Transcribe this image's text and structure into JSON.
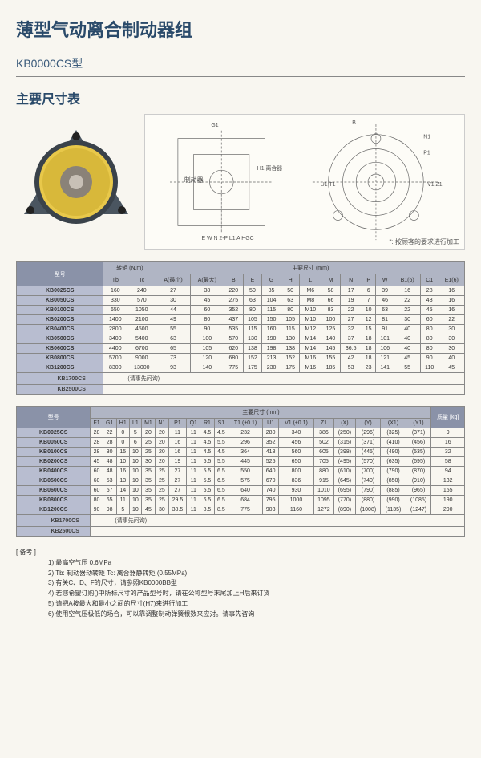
{
  "title_main": "薄型气动离合制动器组",
  "subtitle": "KB0000CS型",
  "section_title": "主要尺寸表",
  "diagram_label_brake": "制动器",
  "diagram_label_clutch": "H1 离合器",
  "diagram_note": "*: 按顾客的要求进行加工",
  "table1": {
    "hdr_model": "型号",
    "hdr_torque": "转矩 (N.m)",
    "hdr_dims": "主要尺寸 (mm)",
    "cols": [
      "Tb",
      "Tc",
      "A(最小)",
      "A(最大)",
      "B",
      "E",
      "G",
      "H",
      "L",
      "M",
      "N",
      "P",
      "W",
      "B1(6)",
      "C1",
      "E1(6)"
    ],
    "rows": [
      {
        "m": "KB0025CS",
        "v": [
          "160",
          "240",
          "27",
          "38",
          "220",
          "50",
          "85",
          "50",
          "M6",
          "58",
          "17",
          "6",
          "39",
          "16",
          "28",
          "16"
        ]
      },
      {
        "m": "KB0050CS",
        "v": [
          "330",
          "570",
          "30",
          "45",
          "275",
          "63",
          "104",
          "63",
          "M8",
          "66",
          "19",
          "7",
          "46",
          "22",
          "43",
          "16"
        ]
      },
      {
        "m": "KB0100CS",
        "v": [
          "650",
          "1050",
          "44",
          "60",
          "352",
          "80",
          "115",
          "80",
          "M10",
          "83",
          "22",
          "10",
          "63",
          "22",
          "45",
          "16"
        ]
      },
      {
        "m": "KB0200CS",
        "v": [
          "1400",
          "2100",
          "49",
          "80",
          "437",
          "105",
          "150",
          "105",
          "M10",
          "100",
          "27",
          "12",
          "81",
          "30",
          "60",
          "22"
        ]
      },
      {
        "m": "KB0400CS",
        "v": [
          "2800",
          "4500",
          "55",
          "90",
          "535",
          "115",
          "160",
          "115",
          "M12",
          "125",
          "32",
          "15",
          "91",
          "40",
          "80",
          "30"
        ]
      },
      {
        "m": "KB0500CS",
        "v": [
          "3400",
          "5400",
          "63",
          "100",
          "570",
          "130",
          "190",
          "130",
          "M14",
          "140",
          "37",
          "18",
          "101",
          "40",
          "80",
          "30"
        ]
      },
      {
        "m": "KB0600CS",
        "v": [
          "4400",
          "6700",
          "65",
          "105",
          "620",
          "138",
          "198",
          "138",
          "M14",
          "145",
          "36.5",
          "18",
          "106",
          "40",
          "80",
          "30"
        ]
      },
      {
        "m": "KB0800CS",
        "v": [
          "5700",
          "9000",
          "73",
          "120",
          "680",
          "152",
          "213",
          "152",
          "M16",
          "155",
          "42",
          "18",
          "121",
          "45",
          "90",
          "40"
        ]
      },
      {
        "m": "KB1200CS",
        "v": [
          "8300",
          "13000",
          "93",
          "140",
          "775",
          "175",
          "230",
          "175",
          "M16",
          "185",
          "53",
          "23",
          "141",
          "55",
          "110",
          "45"
        ]
      }
    ],
    "inquiry_models": [
      "KB1700CS",
      "KB2500CS"
    ],
    "inquiry_text": "(请事先问询)"
  },
  "table2": {
    "hdr_model": "型号",
    "hdr_dims": "主要尺寸 (mm)",
    "hdr_weight": "质量 [kg]",
    "cols": [
      "F1",
      "G1",
      "H1",
      "L1",
      "M1",
      "N1",
      "P1",
      "Q1",
      "R1",
      "S1",
      "T1 (±0.1)",
      "U1",
      "V1 (±0.1)",
      "Z1",
      "(X)",
      "(Y)",
      "(X1)",
      "(Y1)"
    ],
    "rows": [
      {
        "m": "KB0025CS",
        "v": [
          "28",
          "22",
          "0",
          "5",
          "20",
          "20",
          "11",
          "11",
          "4.5",
          "4.5",
          "232",
          "280",
          "340",
          "386",
          "(250)",
          "(296)",
          "(325)",
          "(371)",
          "9"
        ]
      },
      {
        "m": "KB0050CS",
        "v": [
          "28",
          "28",
          "0",
          "6",
          "25",
          "20",
          "16",
          "11",
          "4.5",
          "5.5",
          "296",
          "352",
          "456",
          "502",
          "(315)",
          "(371)",
          "(410)",
          "(456)",
          "16"
        ]
      },
      {
        "m": "KB0100CS",
        "v": [
          "28",
          "30",
          "15",
          "10",
          "25",
          "20",
          "16",
          "11",
          "4.5",
          "4.5",
          "364",
          "418",
          "560",
          "605",
          "(398)",
          "(445)",
          "(490)",
          "(535)",
          "32"
        ]
      },
      {
        "m": "KB0200CS",
        "v": [
          "45",
          "48",
          "10",
          "10",
          "30",
          "20",
          "19",
          "11",
          "5.5",
          "5.5",
          "445",
          "525",
          "650",
          "705",
          "(495)",
          "(570)",
          "(635)",
          "(695)",
          "58"
        ]
      },
      {
        "m": "KB0400CS",
        "v": [
          "60",
          "48",
          "16",
          "10",
          "35",
          "25",
          "27",
          "11",
          "5.5",
          "6.5",
          "550",
          "640",
          "800",
          "880",
          "(610)",
          "(700)",
          "(790)",
          "(870)",
          "94"
        ]
      },
      {
        "m": "KB0500CS",
        "v": [
          "60",
          "53",
          "13",
          "10",
          "35",
          "25",
          "27",
          "11",
          "5.5",
          "6.5",
          "575",
          "670",
          "836",
          "915",
          "(645)",
          "(740)",
          "(850)",
          "(910)",
          "132"
        ]
      },
      {
        "m": "KB0600CS",
        "v": [
          "60",
          "57",
          "14",
          "10",
          "35",
          "25",
          "27",
          "11",
          "5.5",
          "6.5",
          "640",
          "740",
          "930",
          "1010",
          "(695)",
          "(790)",
          "(885)",
          "(965)",
          "155"
        ]
      },
      {
        "m": "KB0800CS",
        "v": [
          "80",
          "65",
          "11",
          "10",
          "35",
          "25",
          "29.5",
          "11",
          "6.5",
          "6.5",
          "684",
          "795",
          "1000",
          "1095",
          "(770)",
          "(880)",
          "(990)",
          "(1085)",
          "190"
        ]
      },
      {
        "m": "KB1200CS",
        "v": [
          "90",
          "98",
          "5",
          "10",
          "45",
          "30",
          "38.5",
          "11",
          "8.5",
          "8.5",
          "775",
          "903",
          "1160",
          "1272",
          "(890)",
          "(1008)",
          "(1135)",
          "(1247)",
          "290"
        ]
      }
    ],
    "inquiry_models": [
      "KB1700CS",
      "KB2500CS"
    ],
    "inquiry_text": "(请事先问询)"
  },
  "notes": {
    "label": "备考",
    "items": [
      "最高空气压 0.6MPa",
      "Tb: 制动器动转矩   Tc: 离合器静转矩 (0.55MPa)",
      "有关C、D、F的尺寸，请参照KB0000BB型",
      "若您希望订购()中所标尺寸的产品型号时，请在公称型号末尾加上H后来订货",
      "请把A按最大和最小之间的尺寸(H7)来进行加工",
      "使用空气压极低的场合，可以靠调整制动弹簧根数来应对。请事先咨询"
    ]
  }
}
